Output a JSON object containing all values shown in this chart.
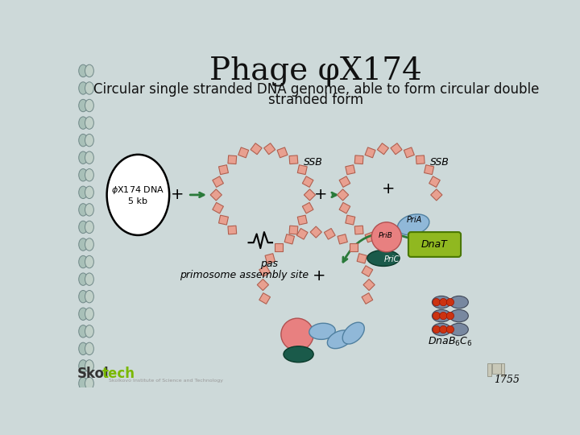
{
  "background_color": "#cdd9d9",
  "title": "Phage φX174",
  "subtitle_line1": "Circular single stranded DNA genome, able to form circular double",
  "subtitle_line2": "stranded form",
  "title_fontsize": 28,
  "subtitle_fontsize": 12,
  "square_fill": "#e8a090",
  "square_outline": "#b06050",
  "arrow_color": "#2a7a3a",
  "label_color": "#111111",
  "priA_color": "#90b8d8",
  "priB_color": "#e88080",
  "priC_color": "#1a5a4a",
  "dnaT_color": "#90b820",
  "dnaBC_gray": "#7888a0",
  "dnaBC_red": "#cc3311",
  "skoltech_dark": "#333333",
  "skoltech_green": "#7ab800",
  "helix_color1": "#a8c0b8",
  "helix_color2": "#c0d0c8",
  "helix_edge": "#708888"
}
